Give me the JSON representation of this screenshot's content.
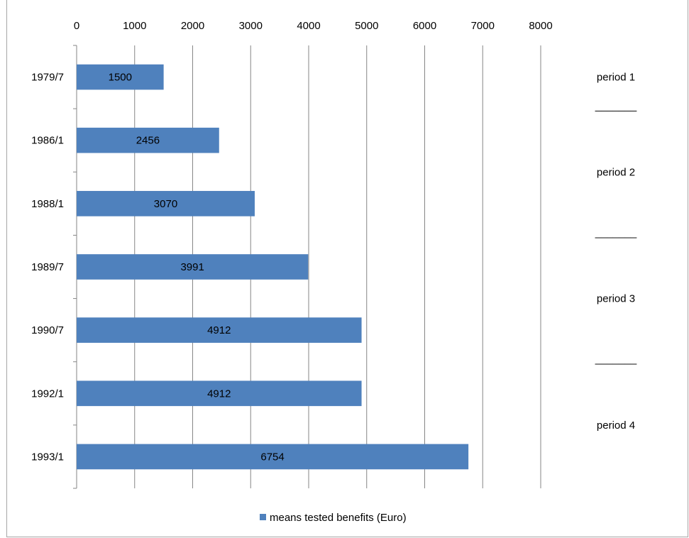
{
  "chart_data": {
    "type": "bar",
    "orientation": "horizontal",
    "categories": [
      "1979/7",
      "1986/1",
      "1988/1",
      "1989/7",
      "1990/7",
      "1992/1",
      "1993/1"
    ],
    "series": [
      {
        "name": "means tested benefits (Euro)",
        "values": [
          1500,
          2456,
          3070,
          3991,
          4912,
          4912,
          6754
        ],
        "color": "#4f81bd"
      }
    ],
    "data_labels": [
      "1500",
      "2456",
      "3070",
      "3991",
      "4912",
      "4912",
      "6754"
    ],
    "x_ticks": [
      "0",
      "1000",
      "2000",
      "3000",
      "4000",
      "5000",
      "6000",
      "7000",
      "8000"
    ],
    "xlim": [
      0,
      8000
    ],
    "x_axis_position": "top",
    "grid": true,
    "legend": {
      "position": "bottom",
      "entries": [
        "means tested benefits (Euro)"
      ]
    },
    "annotations": {
      "periods": [
        "period 1",
        "period 2",
        "period 3",
        "period 4"
      ],
      "separators": [
        "_______",
        "_______",
        "_______"
      ]
    }
  }
}
